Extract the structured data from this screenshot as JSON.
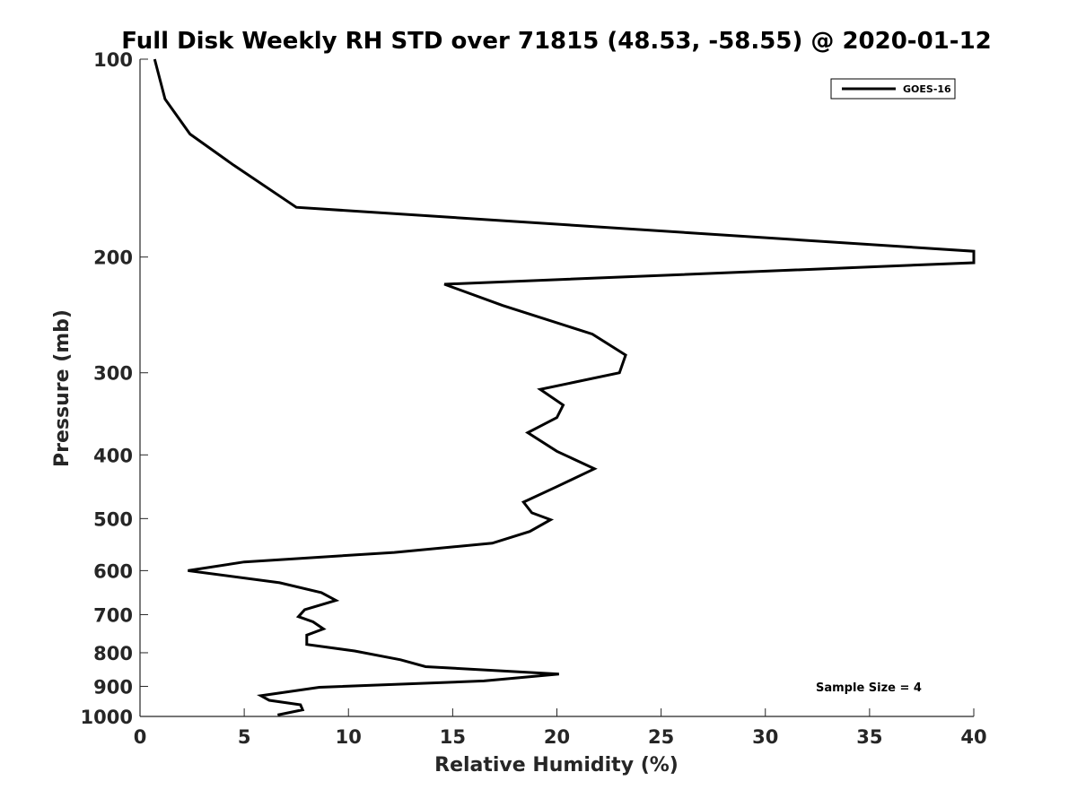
{
  "chart_data": {
    "type": "line",
    "title": "Full Disk Weekly RH STD over 71815 (48.53, -58.55) @ 2020-01-12",
    "xlabel": "Relative Humidity (%)",
    "ylabel": "Pressure (mb)",
    "xlim": [
      0,
      40
    ],
    "ylim": [
      100,
      1000
    ],
    "y_scale": "log",
    "y_reversed": true,
    "x_ticks": [
      "0",
      "5",
      "10",
      "15",
      "20",
      "25",
      "30",
      "35",
      "40"
    ],
    "y_ticks": [
      "100",
      "200",
      "300",
      "400",
      "500",
      "600",
      "700",
      "800",
      "900",
      "1000"
    ],
    "legend": {
      "position": "top-right",
      "entries": [
        "GOES-16"
      ]
    },
    "annotation": "Sample Size = 4",
    "series": [
      {
        "name": "GOES-16",
        "color": "#000000",
        "points": [
          [
            0.7,
            100
          ],
          [
            1.2,
            115
          ],
          [
            2.4,
            130
          ],
          [
            4.5,
            145
          ],
          [
            7.5,
            168
          ],
          [
            40,
            196
          ],
          [
            40,
            204
          ],
          [
            14.6,
            220
          ],
          [
            17.4,
            237
          ],
          [
            21.7,
            262
          ],
          [
            23.3,
            282
          ],
          [
            23.0,
            300
          ],
          [
            19.2,
            318
          ],
          [
            20.3,
            336
          ],
          [
            20.0,
            351
          ],
          [
            18.6,
            370
          ],
          [
            20.0,
            395
          ],
          [
            21.8,
            420
          ],
          [
            20.0,
            447
          ],
          [
            18.4,
            472
          ],
          [
            18.8,
            490
          ],
          [
            19.7,
            502
          ],
          [
            18.7,
            523
          ],
          [
            16.9,
            545
          ],
          [
            12.2,
            563
          ],
          [
            5.0,
            582
          ],
          [
            2.3,
            600
          ],
          [
            6.7,
            626
          ],
          [
            8.7,
            648
          ],
          [
            9.4,
            666
          ],
          [
            7.9,
            688
          ],
          [
            7.6,
            705
          ],
          [
            8.3,
            718
          ],
          [
            8.8,
            736
          ],
          [
            8.0,
            752
          ],
          [
            8.0,
            777
          ],
          [
            10.3,
            795
          ],
          [
            12.5,
            820
          ],
          [
            13.7,
            840
          ],
          [
            20.1,
            862
          ],
          [
            16.5,
            883
          ],
          [
            8.6,
            903
          ],
          [
            5.8,
            930
          ],
          [
            6.2,
            945
          ],
          [
            7.7,
            960
          ],
          [
            7.8,
            977
          ],
          [
            6.6,
            995
          ]
        ]
      }
    ]
  }
}
